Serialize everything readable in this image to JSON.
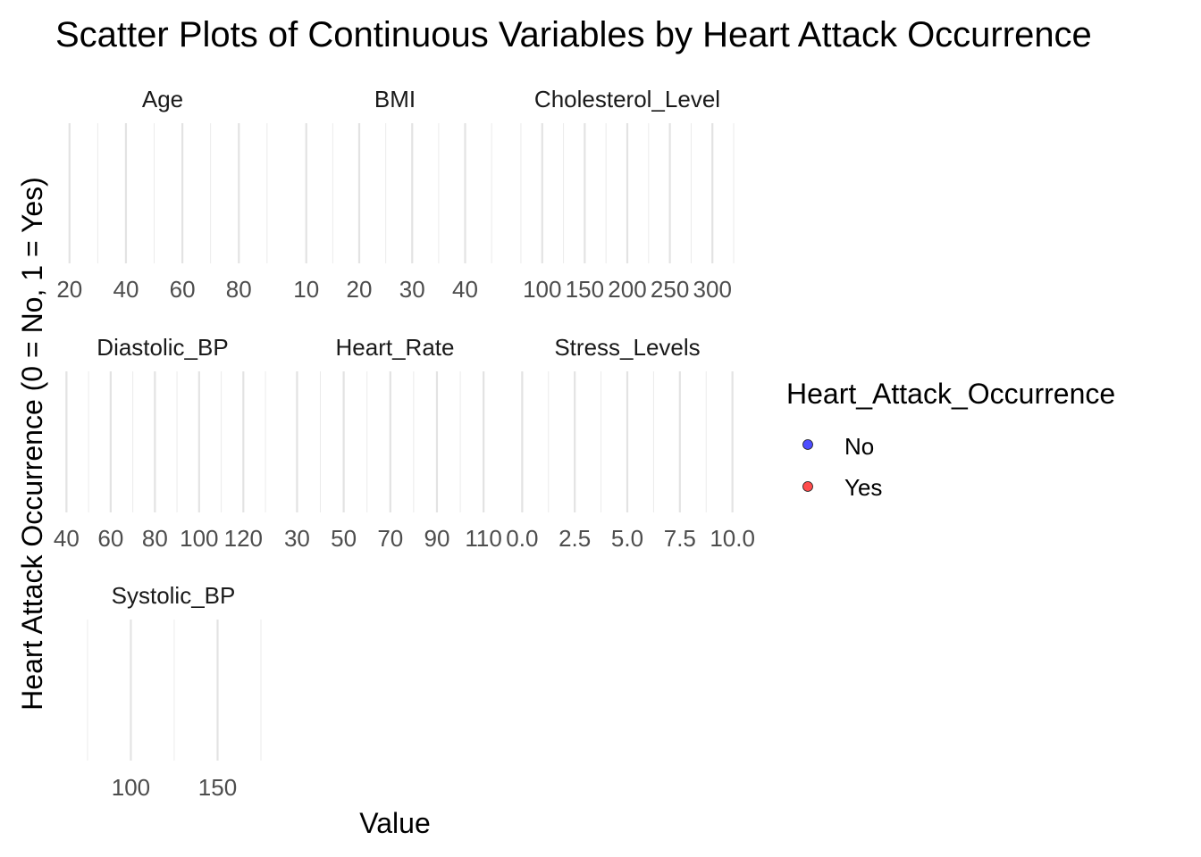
{
  "chart_data": {
    "type": "scatter",
    "title": "Scatter Plots of Continuous Variables by Heart Attack Occurrence",
    "xlabel": "Value",
    "ylabel": "Heart Attack Occurrence (0 = No, 1 = Yes)",
    "grid": true,
    "facet_scales": "free_x",
    "legend": {
      "title": "Heart_Attack_Occurrence",
      "placement": "right",
      "items": [
        {
          "label": "No",
          "color": "#4d4dff"
        },
        {
          "label": "Yes",
          "color": "#ff4d4d"
        }
      ]
    },
    "panels": [
      {
        "name": "Age",
        "xlim": [
          15,
          91
        ],
        "major": [
          20,
          40,
          60,
          80
        ],
        "minor": [
          30,
          50,
          70,
          90
        ],
        "tick_labels": [
          "20",
          "40",
          "60",
          "80"
        ],
        "points": []
      },
      {
        "name": "BMI",
        "xlim": [
          6.5,
          47
        ],
        "major": [
          10,
          20,
          30,
          40
        ],
        "minor": [
          15,
          25,
          35,
          45
        ],
        "tick_labels": [
          "10",
          "20",
          "30",
          "40"
        ],
        "points": []
      },
      {
        "name": "Cholesterol_Level",
        "xlim": [
          74,
          326
        ],
        "major": [
          100,
          150,
          200,
          250,
          300
        ],
        "minor": [
          75,
          125,
          175,
          225,
          275,
          325
        ],
        "tick_labels": [
          "100",
          "150",
          "200",
          "250",
          "300"
        ],
        "points": []
      },
      {
        "name": "Diastolic_BP",
        "xlim": [
          35,
          132
        ],
        "major": [
          40,
          60,
          80,
          100,
          120
        ],
        "minor": [
          50,
          70,
          90,
          110,
          130
        ],
        "tick_labels": [
          "40",
          "60",
          "80",
          "100",
          "120"
        ],
        "points": []
      },
      {
        "name": "Heart_Rate",
        "xlim": [
          26,
          118
        ],
        "major": [
          30,
          50,
          70,
          90,
          110
        ],
        "minor": [
          40,
          60,
          80,
          100
        ],
        "tick_labels": [
          "30",
          "50",
          "70",
          "90",
          "110"
        ],
        "points": []
      },
      {
        "name": "Stress_Levels",
        "xlim": [
          -0.1,
          10.1
        ],
        "major": [
          0,
          2.5,
          5,
          7.5,
          10
        ],
        "minor": [
          1.25,
          3.75,
          6.25,
          8.75
        ],
        "tick_labels": [
          "0.0",
          "2.5",
          "5.0",
          "7.5",
          "10.0"
        ],
        "points": []
      },
      {
        "name": "Systolic_BP",
        "xlim": [
          74,
          175
        ],
        "major": [
          100,
          150
        ],
        "minor": [
          75,
          125,
          175
        ],
        "tick_labels": [
          "100",
          "150"
        ],
        "points": []
      }
    ]
  }
}
